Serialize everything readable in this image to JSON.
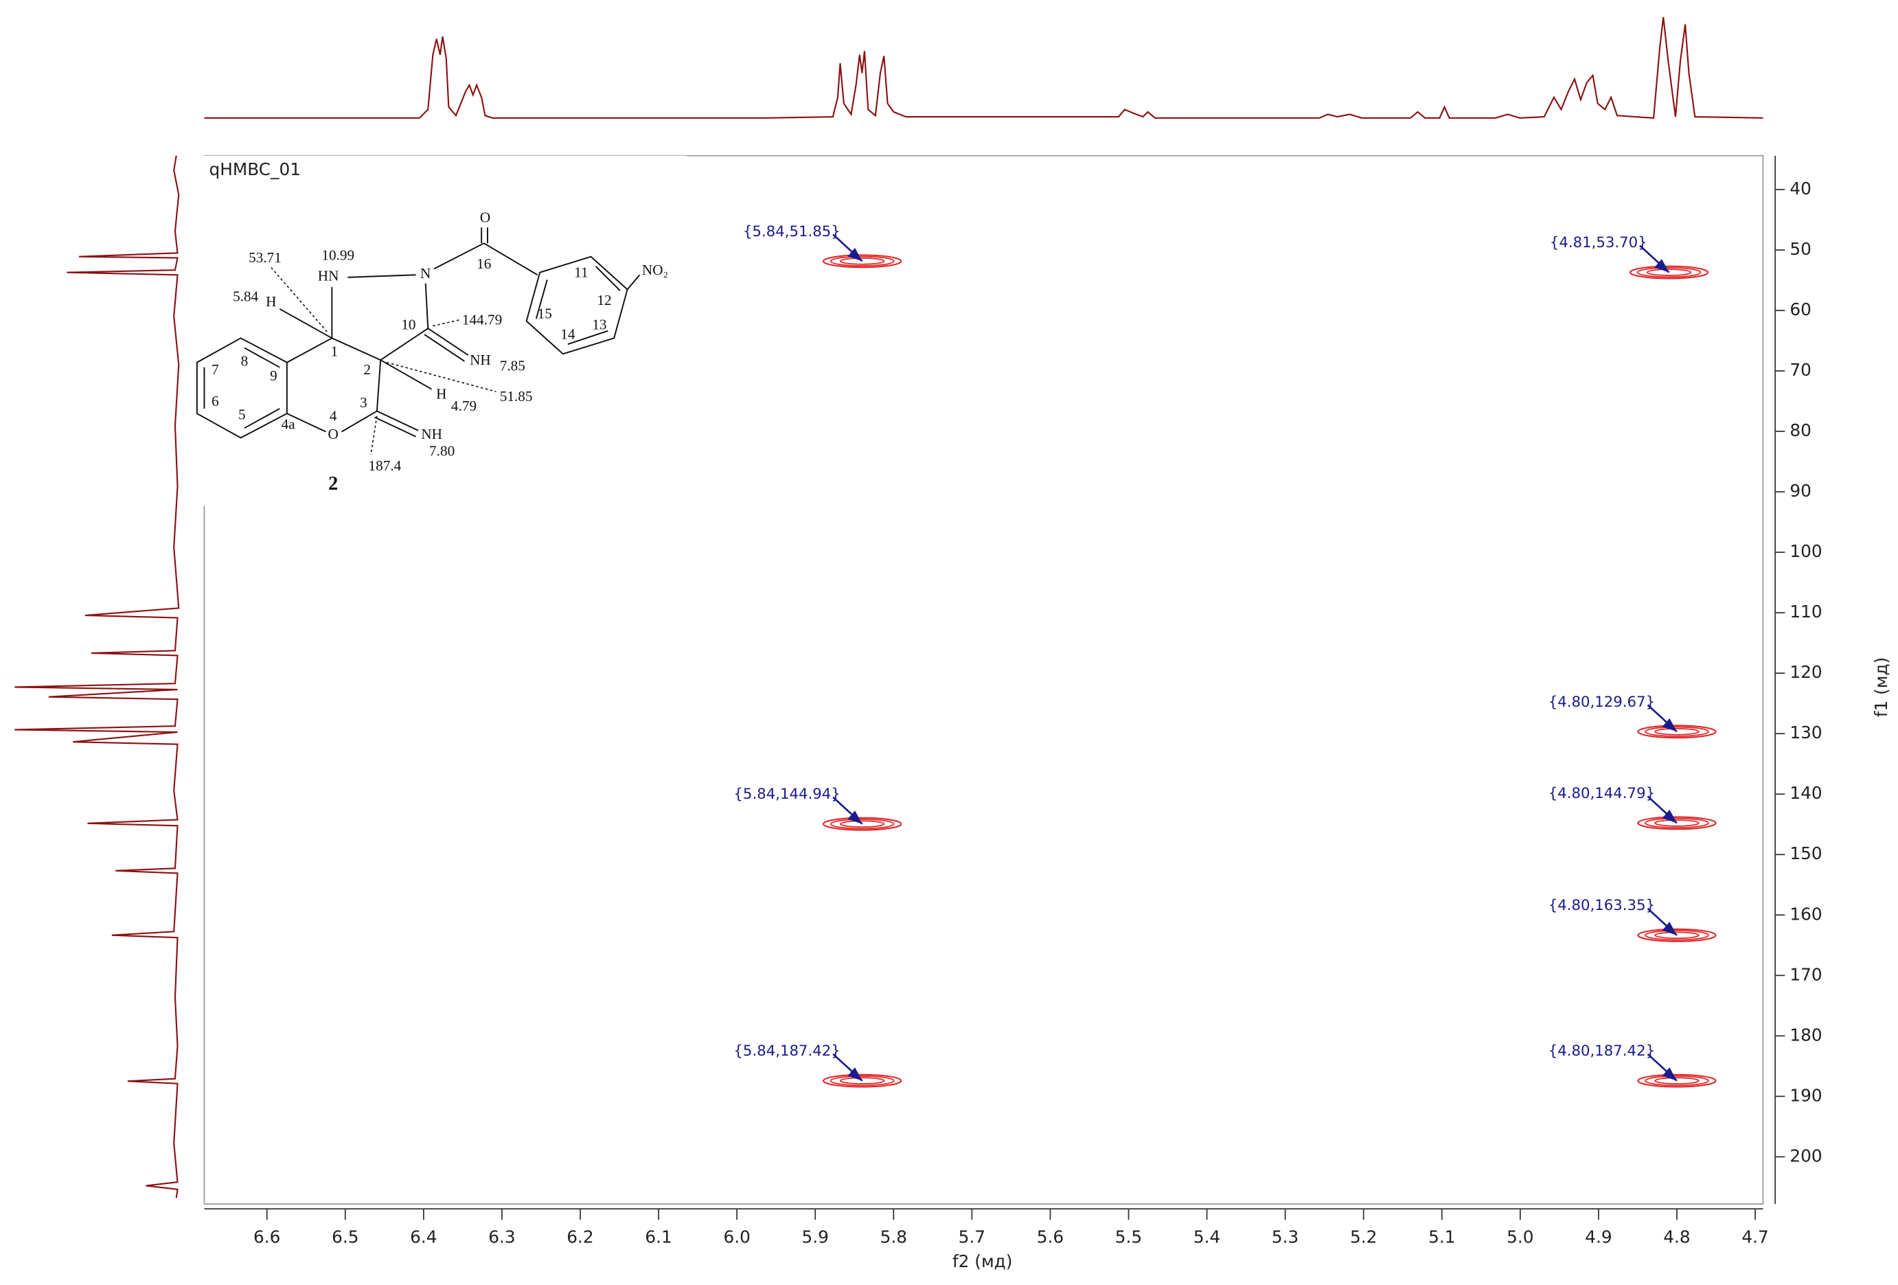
{
  "chart_data": {
    "type": "scatter",
    "title": "qHMBC_01",
    "xlabel": "f2 (мд)",
    "ylabel": "f1 (мд)",
    "x": [
      5.84,
      4.81,
      4.8,
      5.84,
      4.8,
      4.8,
      5.84,
      4.8
    ],
    "values": [
      51.85,
      53.7,
      129.67,
      144.94,
      144.79,
      163.35,
      187.42,
      187.42
    ],
    "value_labels": [
      "{5.84,51.85}",
      "{4.81,53.70}",
      "{4.80,129.67}",
      "{5.84,144.94}",
      "{4.80,144.79}",
      "{4.80,163.35}",
      "{5.84,187.42}",
      "{4.80,187.42}"
    ],
    "color": "#e02828",
    "label_color": "#1a1a8c",
    "trace_color": "#8b1010",
    "xlim": [
      6.68,
      4.69
    ],
    "ylim": [
      34.4,
      207.8
    ],
    "xticks": [
      6.6,
      6.5,
      6.4,
      6.3,
      6.2,
      6.1,
      {
        "value": 6,
        "label": "6.0"
      },
      5.9,
      5.8,
      5.7,
      5.6,
      5.5,
      5.4,
      5.3,
      5.2,
      5.1,
      {
        "value": 5,
        "label": "5.0"
      },
      4.9,
      4.8,
      4.7
    ],
    "yticks": [
      40,
      50,
      60,
      70,
      80,
      90,
      100,
      110,
      120,
      130,
      140,
      150,
      160,
      170,
      180,
      190,
      200
    ]
  },
  "structure": {
    "labels": [
      "O",
      "16",
      "NO₂",
      "10.99",
      "HN",
      "N",
      "53.71",
      "5.84",
      "H",
      "11",
      "12",
      "15",
      "13",
      "14",
      "10",
      "144.79",
      "NH",
      "7.85",
      "1",
      "2",
      "8",
      "9",
      "7",
      "6",
      "5",
      "4a",
      "4",
      "3",
      "O",
      "H",
      "4.79",
      "51.85",
      "NH",
      "7.80",
      "187.4",
      "2"
    ]
  }
}
